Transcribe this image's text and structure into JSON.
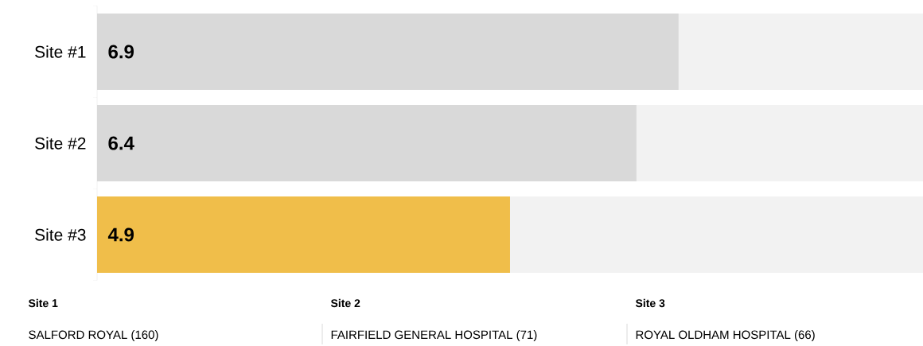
{
  "chart_data": {
    "type": "bar",
    "orientation": "horizontal",
    "categories": [
      "Site #1",
      "Site #2",
      "Site #3"
    ],
    "values": [
      6.9,
      6.4,
      4.9
    ],
    "colors": [
      "#d9d9d9",
      "#d9d9d9",
      "#f0be4a"
    ],
    "xlim": [
      0,
      9.8
    ],
    "tick_labels": "y",
    "data_labels": true,
    "annotations": [
      "Site 1",
      "SALFORD ROYAL (160)",
      "Site 2",
      "FAIRFIELD GENERAL HOSPITAL (71)",
      "Site 3",
      "ROYAL OLDHAM HOSPITAL (66)"
    ]
  }
}
